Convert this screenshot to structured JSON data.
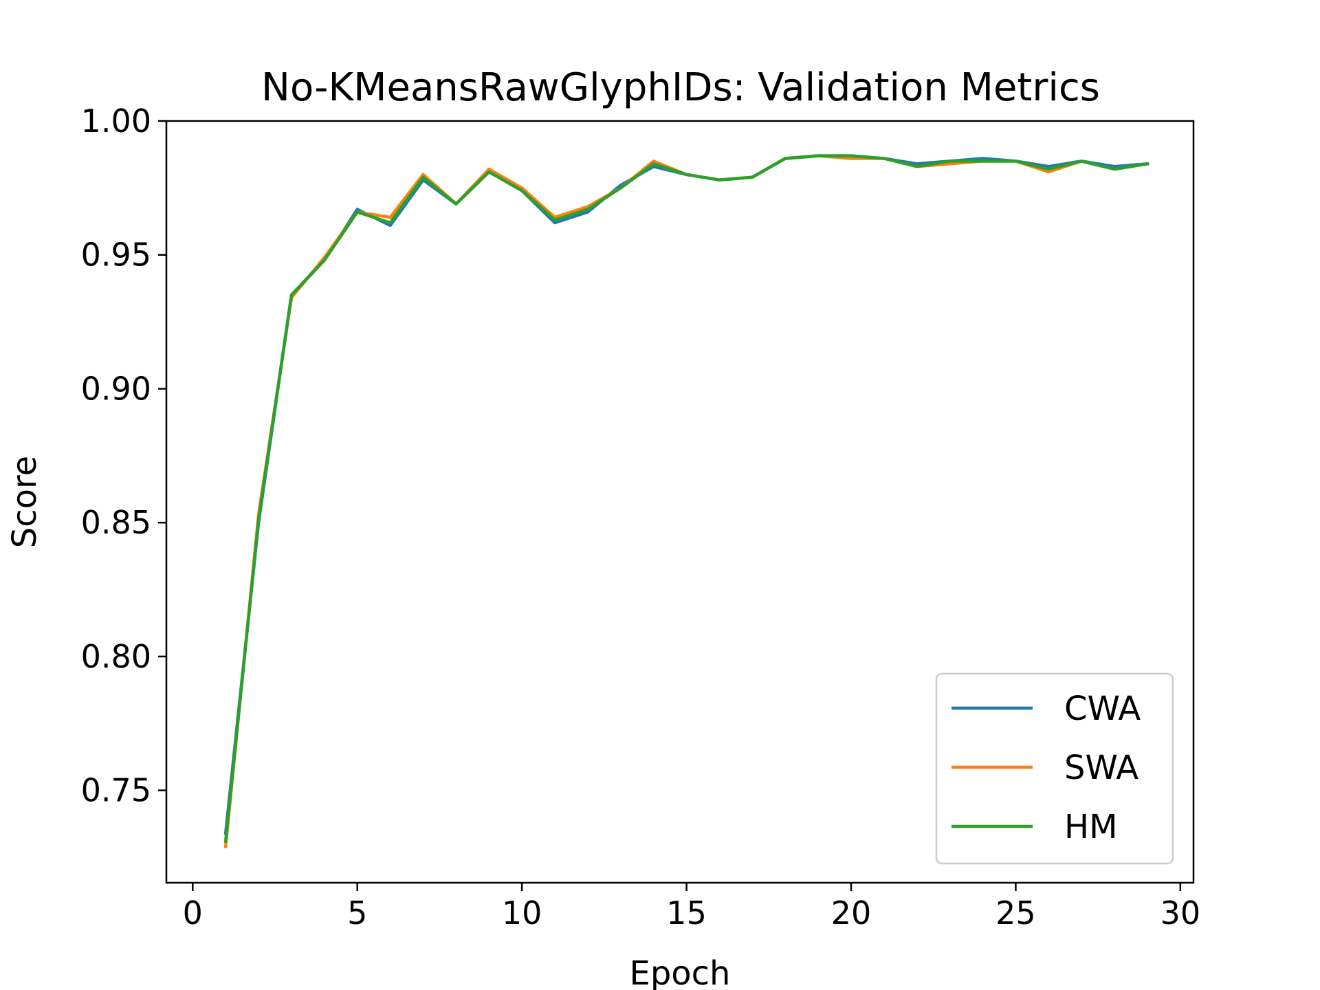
{
  "chart_data": {
    "type": "line",
    "title": "No-KMeansRawGlyphIDs: Validation Metrics",
    "xlabel": "Epoch",
    "ylabel": "Score",
    "xlim": [
      -0.8,
      30.4
    ],
    "ylim": [
      0.7155,
      1.0
    ],
    "xticks": [
      0,
      5,
      10,
      15,
      20,
      25,
      30
    ],
    "xtick_labels": [
      "0",
      "5",
      "10",
      "15",
      "20",
      "25",
      "30"
    ],
    "yticks": [
      0.75,
      0.8,
      0.85,
      0.9,
      0.95,
      1.0
    ],
    "ytick_labels": [
      "0.75",
      "0.80",
      "0.85",
      "0.90",
      "0.95",
      "1.00"
    ],
    "grid": false,
    "legend_position": "lower-right",
    "x": [
      1,
      2,
      3,
      4,
      5,
      6,
      7,
      8,
      9,
      10,
      11,
      12,
      13,
      14,
      15,
      16,
      17,
      18,
      19,
      20,
      21,
      22,
      23,
      24,
      25,
      26,
      27,
      28,
      29
    ],
    "series": [
      {
        "name": "CWA",
        "color": "#1f77b4",
        "values": [
          0.734,
          0.85,
          0.935,
          0.948,
          0.967,
          0.961,
          0.978,
          0.969,
          0.981,
          0.974,
          0.962,
          0.966,
          0.976,
          0.983,
          0.98,
          0.978,
          0.979,
          0.986,
          0.987,
          0.987,
          0.986,
          0.984,
          0.985,
          0.986,
          0.985,
          0.983,
          0.985,
          0.983,
          0.984
        ]
      },
      {
        "name": "SWA",
        "color": "#ff7f0e",
        "values": [
          0.729,
          0.853,
          0.934,
          0.949,
          0.966,
          0.964,
          0.98,
          0.969,
          0.982,
          0.975,
          0.964,
          0.968,
          0.975,
          0.985,
          0.98,
          0.978,
          0.979,
          0.986,
          0.987,
          0.986,
          0.986,
          0.983,
          0.984,
          0.985,
          0.985,
          0.981,
          0.985,
          0.982,
          0.984
        ]
      },
      {
        "name": "HM",
        "color": "#2ca02c",
        "values": [
          0.731,
          0.851,
          0.935,
          0.948,
          0.966,
          0.962,
          0.979,
          0.969,
          0.981,
          0.974,
          0.963,
          0.967,
          0.975,
          0.984,
          0.98,
          0.978,
          0.979,
          0.986,
          0.987,
          0.987,
          0.986,
          0.983,
          0.985,
          0.985,
          0.985,
          0.982,
          0.985,
          0.982,
          0.984
        ]
      }
    ]
  }
}
